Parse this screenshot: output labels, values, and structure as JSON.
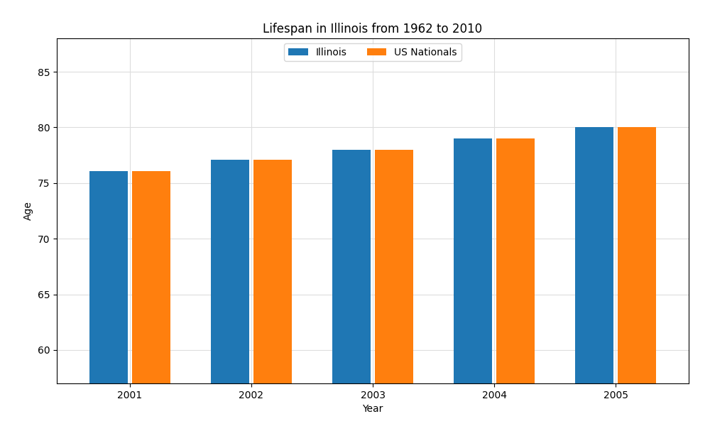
{
  "chart_data": {
    "type": "bar",
    "title": "Lifespan in Illinois from 1962 to 2010",
    "x_label": "Year",
    "y_label": "Age",
    "categories": [
      "2001",
      "2002",
      "2003",
      "2004",
      "2005"
    ],
    "series": [
      {
        "name": "Illinois",
        "values": [
          76.1,
          77.1,
          78.0,
          79.0,
          80.0
        ]
      },
      {
        "name": "US Nationals",
        "values": [
          76.1,
          77.1,
          78.0,
          79.0,
          80.0
        ]
      }
    ],
    "ylim": [
      57,
      88
    ],
    "yticks": [
      60,
      65,
      70,
      75,
      80,
      85
    ],
    "grid": true,
    "legend": "upper center"
  }
}
